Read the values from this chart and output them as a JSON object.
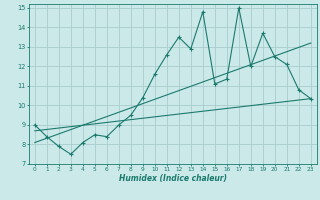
{
  "title": "",
  "xlabel": "Humidex (Indice chaleur)",
  "background_color": "#cce9e9",
  "grid_color": "#aacccc",
  "line_color": "#1a7a6e",
  "xlim": [
    -0.5,
    23.5
  ],
  "ylim": [
    7,
    15.2
  ],
  "xticks": [
    0,
    1,
    2,
    3,
    4,
    5,
    6,
    7,
    8,
    9,
    10,
    11,
    12,
    13,
    14,
    15,
    16,
    17,
    18,
    19,
    20,
    21,
    22,
    23
  ],
  "yticks": [
    7,
    8,
    9,
    10,
    11,
    12,
    13,
    14,
    15
  ],
  "series1_x": [
    0,
    1,
    2,
    3,
    4,
    5,
    6,
    7,
    8,
    9,
    10,
    11,
    12,
    13,
    14,
    15,
    16,
    17,
    18,
    19,
    20,
    21,
    22,
    23
  ],
  "series1_y": [
    9.0,
    8.4,
    7.9,
    7.5,
    8.1,
    8.5,
    8.4,
    9.0,
    9.5,
    10.4,
    11.6,
    12.6,
    13.5,
    12.9,
    14.8,
    11.1,
    11.35,
    15.0,
    12.0,
    13.7,
    12.5,
    12.1,
    10.8,
    10.35
  ],
  "series2_x": [
    0,
    23
  ],
  "series2_y": [
    8.7,
    10.35
  ],
  "series3_x": [
    0,
    23
  ],
  "series3_y": [
    8.1,
    13.2
  ]
}
